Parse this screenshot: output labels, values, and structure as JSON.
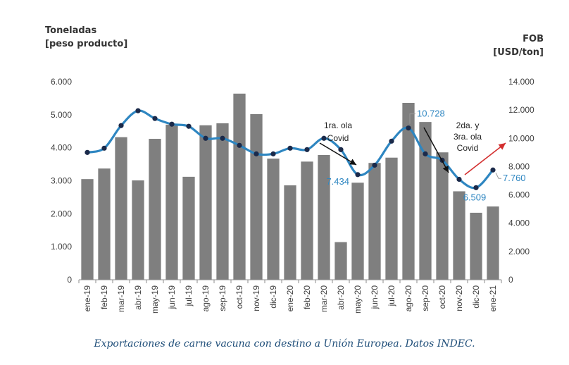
{
  "chart_data": {
    "type": "bar+line",
    "left_axis_title": [
      "Toneladas",
      "[peso producto]"
    ],
    "right_axis_title": [
      "FOB",
      "[USD/ton]"
    ],
    "categories": [
      "ene-19",
      "feb-19",
      "mar-19",
      "abr-19",
      "may-19",
      "jun-19",
      "jul-19",
      "ago-19",
      "sep-19",
      "oct-19",
      "nov-19",
      "dic-19",
      "ene-20",
      "feb-20",
      "mar-20",
      "abr-20",
      "may-20",
      "jun-20",
      "jul-20",
      "ago-20",
      "sep-20",
      "oct-20",
      "nov-20",
      "dic-20",
      "ene-21"
    ],
    "series": [
      {
        "name": "Toneladas",
        "type": "bar",
        "axis": "left",
        "color": "#7f7f7f",
        "values": [
          3050,
          3370,
          4320,
          3010,
          4270,
          4700,
          3120,
          4680,
          4740,
          5640,
          5020,
          3670,
          2860,
          3580,
          3780,
          1140,
          2940,
          3540,
          3700,
          5360,
          4780,
          3860,
          2680,
          2030,
          2220
        ]
      },
      {
        "name": "FOB USD/ton",
        "type": "line",
        "axis": "right",
        "color": "#2e86c1",
        "values": [
          9000,
          9300,
          10900,
          11950,
          11400,
          11000,
          10850,
          10000,
          10000,
          9500,
          8900,
          8900,
          9300,
          9200,
          10000,
          9200,
          7434,
          8100,
          9800,
          10728,
          8900,
          8450,
          7100,
          6509,
          7760
        ]
      }
    ],
    "left_axis": {
      "min": 0,
      "max": 6000,
      "ticks": [
        "0",
        "1.000",
        "2.000",
        "3.000",
        "4.000",
        "5.000",
        "6.000"
      ]
    },
    "right_axis": {
      "min": 0,
      "max": 14000,
      "ticks": [
        "0",
        "2.000",
        "4.000",
        "6.000",
        "8.000",
        "10.000",
        "12.000",
        "14.000"
      ]
    },
    "point_labels": [
      {
        "index": 16,
        "text": "7.434"
      },
      {
        "index": 19,
        "text": "10.728"
      },
      {
        "index": 23,
        "text": "6.509"
      },
      {
        "index": 24,
        "text": "7.760"
      }
    ],
    "annotations": [
      {
        "lines": [
          "1ra. ola",
          "Covid"
        ]
      },
      {
        "lines": [
          "2da. y",
          "3ra. ola",
          "Covid"
        ]
      }
    ],
    "arrow_color": "#d32f2f"
  },
  "caption": "Exportaciones de carne vacuna con destino a Unión Europea. Datos INDEC."
}
